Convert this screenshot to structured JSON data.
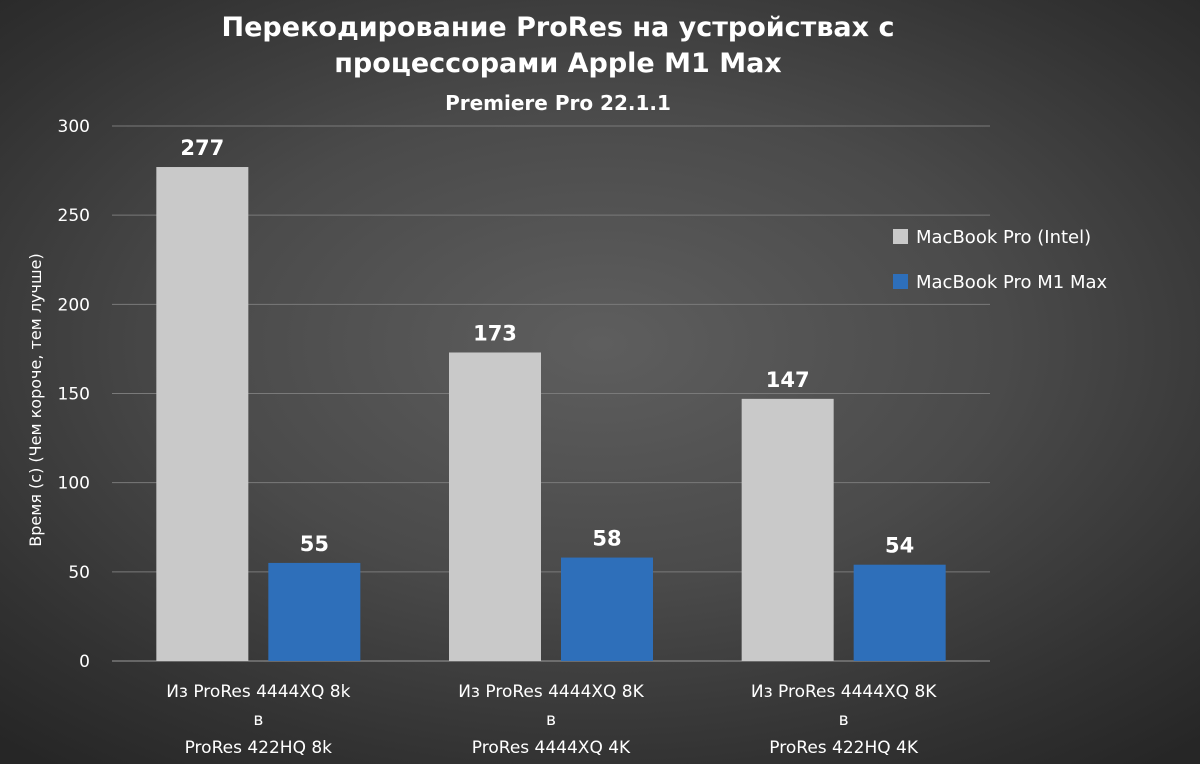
{
  "chart_data": {
    "type": "bar",
    "title_lines": [
      "Перекодирование ProRes на устройствах с",
      "процессорами Apple M1 Max"
    ],
    "subtitle": "Premiere Pro 22.1.1",
    "ylabel": "Время (с) (Чем короче, тем лучше)",
    "xlabel": "",
    "ylim": [
      0,
      300
    ],
    "yticks": [
      0,
      50,
      100,
      150,
      200,
      250,
      300
    ],
    "grid": true,
    "legend_position": "right",
    "categories": [
      [
        "Из ProRes 4444XQ 8k",
        "в",
        "ProRes 422HQ 8k"
      ],
      [
        "Из ProRes 4444XQ 8K",
        "в",
        "ProRes 4444XQ 4K"
      ],
      [
        "Из ProRes 4444XQ 8K",
        "в",
        "ProRes 422HQ 4K"
      ]
    ],
    "series": [
      {
        "name": "MacBook Pro (Intel)",
        "color": "#c9c9c9",
        "values": [
          277,
          173,
          147
        ]
      },
      {
        "name": "MacBook Pro M1 Max",
        "color": "#2e6fba",
        "values": [
          55,
          58,
          54
        ]
      }
    ]
  }
}
